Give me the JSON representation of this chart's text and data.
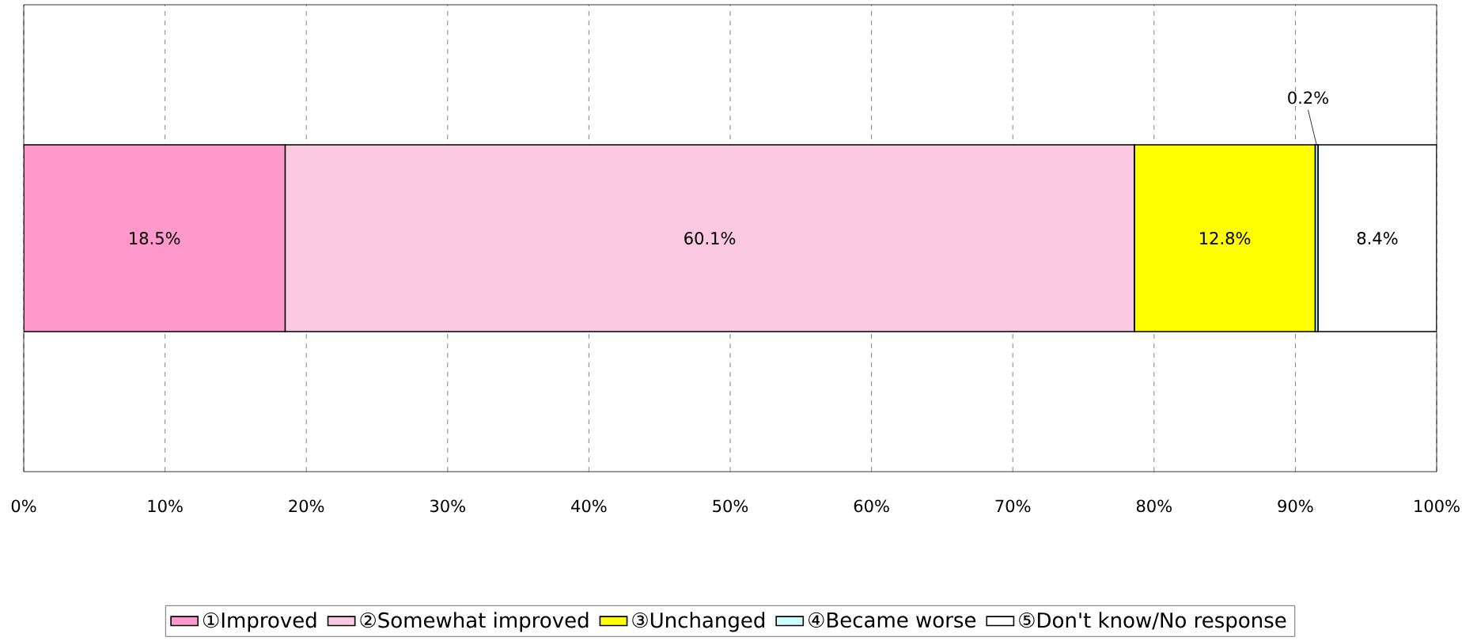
{
  "chart_data": {
    "type": "bar",
    "orientation": "horizontal",
    "stacked": true,
    "categories": [
      null
    ],
    "series": [
      {
        "name": "①Improved",
        "color": "#ff99cc",
        "values": [
          18.5
        ],
        "value_labels": [
          "18.5%"
        ]
      },
      {
        "name": "②Somewhat improved",
        "color": "#fbc8e2",
        "values": [
          60.1
        ],
        "value_labels": [
          "60.1%"
        ]
      },
      {
        "name": "③Unchanged",
        "color": "#ffff00",
        "values": [
          12.8
        ],
        "value_labels": [
          "12.8%"
        ]
      },
      {
        "name": "④Became worse",
        "color": "#ccffff",
        "values": [
          0.2
        ],
        "value_labels": [
          "0.2%"
        ]
      },
      {
        "name": "⑤Don't know/No response",
        "color": "#ffffff",
        "values": [
          8.4
        ],
        "value_labels": [
          "8.4%"
        ]
      }
    ],
    "xlim": [
      0,
      100
    ],
    "xticks": [
      {
        "value": 0,
        "label": "0%"
      },
      {
        "value": 10,
        "label": "10%"
      },
      {
        "value": 20,
        "label": "20%"
      },
      {
        "value": 30,
        "label": "30%"
      },
      {
        "value": 40,
        "label": "40%"
      },
      {
        "value": 50,
        "label": "50%"
      },
      {
        "value": 60,
        "label": "60%"
      },
      {
        "value": 70,
        "label": "70%"
      },
      {
        "value": 80,
        "label": "80%"
      },
      {
        "value": 90,
        "label": "90%"
      },
      {
        "value": 100,
        "label": "100%"
      }
    ],
    "grid": "x",
    "legend": "bottom"
  }
}
